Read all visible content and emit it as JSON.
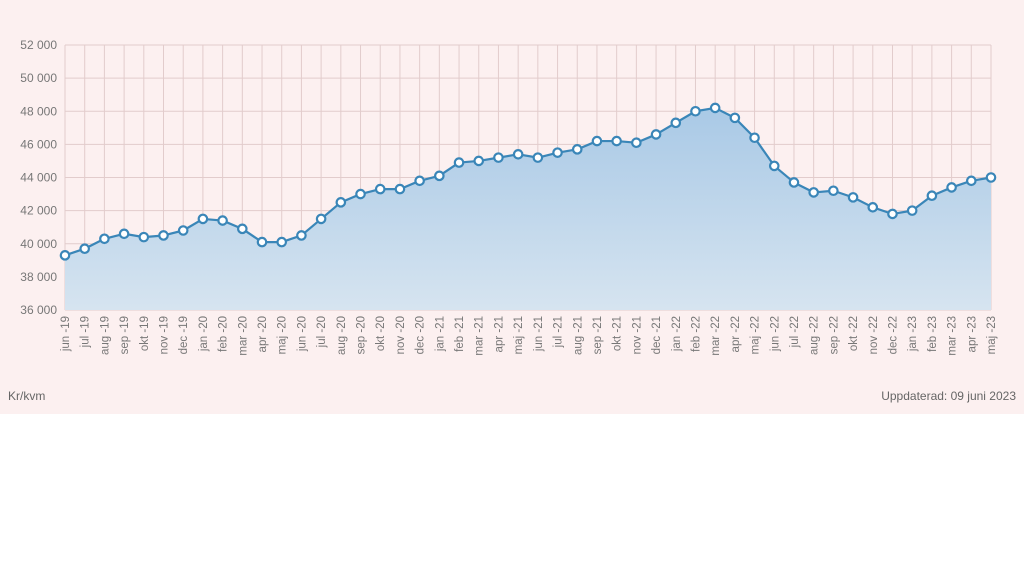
{
  "chart_data": {
    "type": "area",
    "title": "",
    "xlabel": "",
    "ylabel": "",
    "ylim": [
      36000,
      52000
    ],
    "yticks": [
      36000,
      38000,
      40000,
      42000,
      44000,
      46000,
      48000,
      50000,
      52000
    ],
    "ytick_labels": [
      "36 000",
      "38 000",
      "40 000",
      "42 000",
      "44 000",
      "46 000",
      "48 000",
      "50 000",
      "52 000"
    ],
    "grid": true,
    "categories": [
      "jun -19",
      "jul -19",
      "aug -19",
      "sep -19",
      "okt -19",
      "nov -19",
      "dec -19",
      "jan -20",
      "feb -20",
      "mar -20",
      "apr -20",
      "maj -20",
      "jun -20",
      "jul -20",
      "aug -20",
      "sep -20",
      "okt -20",
      "nov -20",
      "dec -20",
      "jan -21",
      "feb -21",
      "mar -21",
      "apr -21",
      "maj -21",
      "jun -21",
      "jul -21",
      "aug -21",
      "sep -21",
      "okt -21",
      "nov -21",
      "dec -21",
      "jan -22",
      "feb -22",
      "mar -22",
      "apr -22",
      "maj -22",
      "jun -22",
      "jul -22",
      "aug -22",
      "sep -22",
      "okt -22",
      "nov -22",
      "dec -22",
      "jan -23",
      "feb -23",
      "mar -23",
      "apr -23",
      "maj -23"
    ],
    "series": [
      {
        "values": [
          39300,
          39700,
          40300,
          40600,
          40400,
          40500,
          40800,
          41500,
          41400,
          40900,
          40100,
          40100,
          40500,
          41500,
          42500,
          43000,
          43300,
          43300,
          43800,
          44100,
          44900,
          45000,
          45200,
          45400,
          45200,
          45500,
          45700,
          46200,
          46200,
          46100,
          46600,
          47300,
          48000,
          48200,
          47600,
          46400,
          44700,
          43700,
          43100,
          43200,
          42800,
          42200,
          41800,
          42000,
          42900,
          43400,
          43800,
          44000
        ]
      }
    ],
    "colors": {
      "line": "#3a86b8",
      "fill_top": "#a9c9e6",
      "fill_bottom": "#d6e4f0",
      "grid": "#e2cccc",
      "marker_fill": "#ffffff"
    }
  },
  "footer": {
    "unit": "Kr/kvm",
    "updated": "Uppdaterad: 09 juni 2023"
  }
}
